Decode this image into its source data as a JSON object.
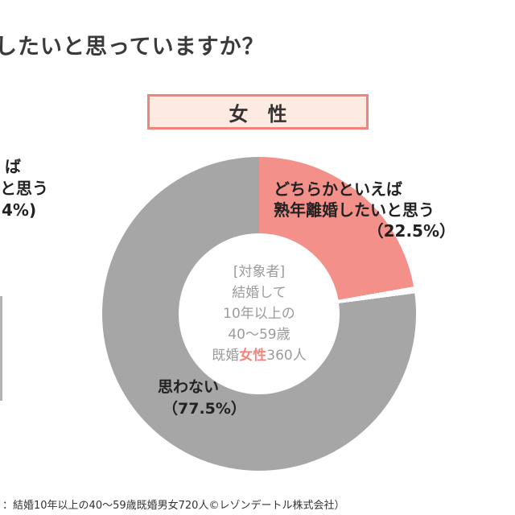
{
  "title": "したいと思っていますか？",
  "gender_box": {
    "label": "女 性"
  },
  "chart_data": {
    "type": "pie",
    "title": "女性",
    "slices": [
      {
        "label": "どちらかといえば熟年離婚したいと思う",
        "value": 22.5,
        "color": "#f4908a"
      },
      {
        "label": "思わない",
        "value": 77.5,
        "color": "#a6a6a6"
      }
    ],
    "start_angle_deg": 0,
    "direction": "clockwise",
    "donut": true,
    "center_text": [
      "[対象者]",
      "結婚して",
      "10年以上の",
      "40〜59歳",
      "既婚女性360人"
    ]
  },
  "donut_center": {
    "lines": [
      "[対象者]",
      "結婚して",
      "10年以上の",
      "40〜59歳"
    ],
    "line5": {
      "pre": "既婚",
      "highlight": "女性",
      "post": "360人"
    }
  },
  "labels": {
    "pink": {
      "line1": "どちらかといえば",
      "line2": "熟年離婚したいと思う",
      "line3": "（22.5%）"
    },
    "gray": {
      "line1": "思わない",
      "line2": "（77.5%）"
    }
  },
  "left_fragment": {
    "line1": "ば",
    "line2": "と思う",
    "line3": "4%)"
  },
  "footnote": "：結婚10年以上の40〜59歳既婚男女720人©レゾンデートル株式会社）",
  "colors": {
    "pink": "#f4908a",
    "gray": "#a6a6a6",
    "box_fill": "#fdeae3",
    "box_border": "#f2837b",
    "highlight_text": "#f4837b"
  }
}
